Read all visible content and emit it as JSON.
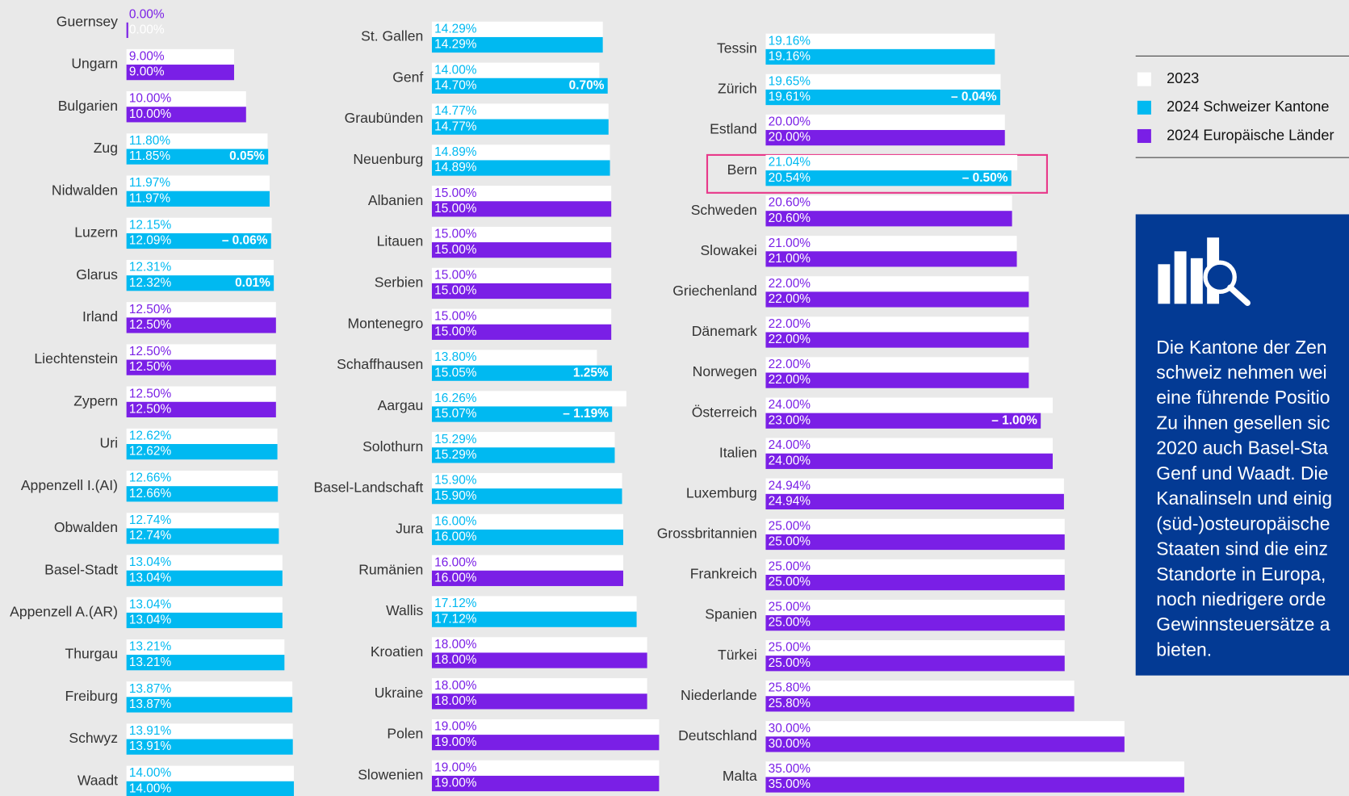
{
  "chart_data": {
    "type": "paired-hbar",
    "categories": [
      "Guernsey",
      "Ungarn",
      "Bulgarien",
      "Zug",
      "Nidwalden",
      "Luzern",
      "Glarus",
      "Irland",
      "Liechtenstein",
      "Zypern",
      "Uri",
      "Appenzell I.(AI)",
      "Obwalden",
      "Basel-Stadt",
      "Appenzell A.(AR)",
      "Thurgau",
      "Freiburg",
      "Schwyz",
      "Waadt",
      "St. Gallen",
      "Genf",
      "Graubünden",
      "Neuenburg",
      "Albanien",
      "Litauen",
      "Serbien",
      "Montenegro",
      "Schaffhausen",
      "Aargau",
      "Solothurn",
      "Basel-Landschaft",
      "Jura",
      "Rumänien",
      "Wallis",
      "Kroatien",
      "Ukraine",
      "Polen",
      "Slowenien",
      "Tessin",
      "Zürich",
      "Estland",
      "Bern",
      "Schweden",
      "Slowakei",
      "Griechenland",
      "Dänemark",
      "Norwegen",
      "Österreich",
      "Italien",
      "Luxemburg",
      "Grossbritannien",
      "Frankreich",
      "Spanien",
      "Türkei",
      "Niederlande",
      "Deutschland",
      "Malta"
    ],
    "series": [
      {
        "name": "2023",
        "color": "#ffffff",
        "values": [
          0,
          9,
          10,
          11.8,
          11.97,
          12.15,
          12.31,
          12.5,
          12.5,
          12.5,
          12.62,
          12.66,
          12.74,
          13.04,
          13.04,
          13.21,
          13.87,
          13.91,
          14,
          14.29,
          14,
          14.77,
          14.89,
          15,
          15,
          15,
          15,
          13.8,
          16.26,
          15.29,
          15.9,
          16,
          16,
          17.12,
          18,
          18,
          19,
          19,
          19.16,
          19.65,
          20,
          21.04,
          20.6,
          21,
          22,
          22,
          22,
          24,
          24,
          24.94,
          25,
          25,
          25,
          25,
          25.8,
          30,
          35
        ],
        "value_labels": [
          "0.00%",
          "9.00%",
          "10.00%",
          "11.80%",
          "11.97%",
          "12.15%",
          "12.31%",
          "12.50%",
          "12.50%",
          "12.50%",
          "12.62%",
          "12.66%",
          "12.74%",
          "13.04%",
          "13.04%",
          "13.21%",
          "13.87%",
          "13.91%",
          "14.00%",
          "14.29%",
          "14.00%",
          "14.77%",
          "14.89%",
          "15.00%",
          "15.00%",
          "15.00%",
          "15.00%",
          "13.80%",
          "16.26%",
          "15.29%",
          "15.90%",
          "16.00%",
          "16.00%",
          "17.12%",
          "18.00%",
          "18.00%",
          "19.00%",
          "19.00%",
          "19.16%",
          "19.65%",
          "20.00%",
          "21.04%",
          "20.60%",
          "21.00%",
          "22.00%",
          "22.00%",
          "22.00%",
          "24.00%",
          "24.00%",
          "24.94%",
          "25.00%",
          "25.00%",
          "25.00%",
          "25.00%",
          "25.80%",
          "30.00%",
          "35.00%"
        ]
      },
      {
        "name": "2024 Schweizer Kantone",
        "color": "#00b9f1",
        "values": [
          null,
          null,
          null,
          11.85,
          11.97,
          12.09,
          12.32,
          null,
          null,
          null,
          12.62,
          12.66,
          12.74,
          13.04,
          13.04,
          13.21,
          13.87,
          13.91,
          14,
          14.29,
          14.7,
          14.77,
          14.89,
          null,
          null,
          null,
          null,
          15.05,
          15.07,
          15.29,
          15.9,
          16,
          null,
          17.12,
          null,
          null,
          null,
          null,
          19.16,
          19.61,
          null,
          20.54,
          null,
          null,
          null,
          null,
          null,
          null,
          null,
          null,
          null,
          null,
          null,
          null,
          null,
          null,
          null
        ],
        "value_labels": [
          null,
          null,
          null,
          "11.85%",
          "11.97%",
          "12.09%",
          "12.32%",
          null,
          null,
          null,
          "12.62%",
          "12.66%",
          "12.74%",
          "13.04%",
          "13.04%",
          "13.21%",
          "13.87%",
          "13.91%",
          "14.00%",
          "14.29%",
          "14.70%",
          "14.77%",
          "14.89%",
          null,
          null,
          null,
          null,
          "15.05%",
          "15.07%",
          "15.29%",
          "15.90%",
          "16.00%",
          null,
          "17.12%",
          null,
          null,
          null,
          null,
          "19.16%",
          "19.61%",
          null,
          "20.54%",
          null,
          null,
          null,
          null,
          null,
          null,
          null,
          null,
          null,
          null,
          null,
          null,
          null,
          null,
          null
        ]
      },
      {
        "name": "2024 Europäische Länder",
        "color": "#7a1fe6",
        "values": [
          0,
          9,
          10,
          null,
          null,
          null,
          null,
          12.5,
          12.5,
          12.5,
          null,
          null,
          null,
          null,
          null,
          null,
          null,
          null,
          null,
          null,
          null,
          null,
          null,
          15,
          15,
          15,
          15,
          null,
          null,
          null,
          null,
          null,
          16,
          null,
          18,
          18,
          19,
          19,
          null,
          null,
          20,
          null,
          20.6,
          21,
          22,
          22,
          22,
          23,
          24,
          24.94,
          25,
          25,
          25,
          25,
          25.8,
          30,
          35
        ],
        "value_labels": [
          "0.00%",
          "9.00%",
          "10.00%",
          null,
          null,
          null,
          null,
          "12.50%",
          "12.50%",
          "12.50%",
          null,
          null,
          null,
          null,
          null,
          null,
          null,
          null,
          null,
          null,
          null,
          null,
          null,
          "15.00%",
          "15.00%",
          "15.00%",
          "15.00%",
          null,
          null,
          null,
          null,
          null,
          "16.00%",
          null,
          "18.00%",
          "18.00%",
          "19.00%",
          "19.00%",
          null,
          null,
          "20.00%",
          null,
          "20.60%",
          "21.00%",
          "22.00%",
          "22.00%",
          "22.00%",
          "23.00%",
          "24.00%",
          "24.94%",
          "25.00%",
          "25.00%",
          "25.00%",
          "25.00%",
          "25.80%",
          "30.00%",
          "35.00%"
        ]
      }
    ],
    "changes": {
      "values": [
        null,
        null,
        null,
        0.05,
        null,
        -0.06,
        0.01,
        null,
        null,
        null,
        null,
        null,
        null,
        null,
        null,
        null,
        null,
        null,
        null,
        null,
        0.7,
        null,
        null,
        null,
        null,
        null,
        null,
        1.25,
        -1.19,
        null,
        null,
        null,
        null,
        null,
        null,
        null,
        null,
        null,
        null,
        -0.04,
        null,
        -0.5,
        null,
        null,
        null,
        null,
        null,
        -1,
        null,
        null,
        null,
        null,
        null,
        null,
        null,
        null,
        null
      ],
      "value_labels": [
        null,
        null,
        null,
        "0.05%",
        null,
        "– 0.06%",
        "0.01%",
        null,
        null,
        null,
        null,
        null,
        null,
        null,
        null,
        null,
        null,
        null,
        null,
        null,
        "0.70%",
        null,
        null,
        null,
        null,
        null,
        null,
        "1.25%",
        "– 1.19%",
        null,
        null,
        null,
        null,
        null,
        null,
        null,
        null,
        null,
        null,
        "– 0.04%",
        null,
        "– 0.50%",
        null,
        null,
        null,
        null,
        null,
        "– 1.00%",
        null,
        null,
        null,
        null,
        null,
        null,
        null,
        null,
        null
      ]
    }
  },
  "info_box": {
    "lines": [
      "Die Kantone der Zen",
      "schweiz nehmen wei",
      "eine führende Positio",
      "Zu ihnen gesellen sic",
      "2020 auch Basel-Sta",
      "Genf und Waadt. Die",
      "Kanalinseln und einig",
      "(süd-)osteuropäische",
      "Staaten sind die einz",
      "Standorte in Europa,",
      "noch niedrigere orde",
      "Gewinnsteuersätze a",
      "bieten."
    ]
  }
}
